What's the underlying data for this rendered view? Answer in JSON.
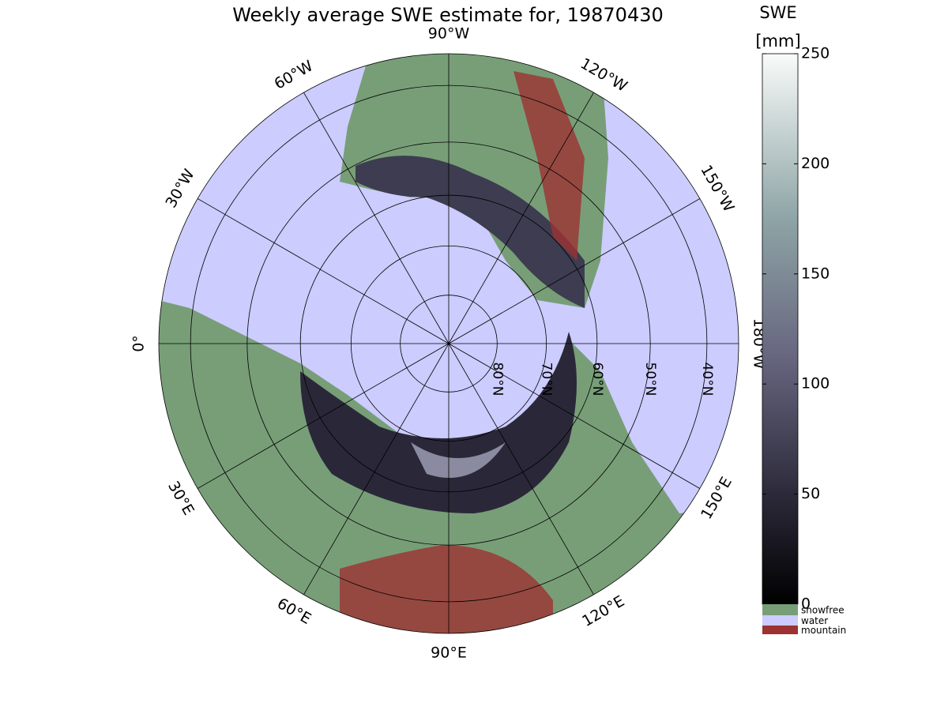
{
  "title": "Weekly average SWE estimate for, 19870430",
  "map": {
    "longitudes": [
      {
        "value": -90,
        "label": "90°W"
      },
      {
        "value": -120,
        "label": "120°W"
      },
      {
        "value": -150,
        "label": "150°W"
      },
      {
        "value": -180,
        "label": "180°W"
      },
      {
        "value": 150,
        "label": "150°E"
      },
      {
        "value": 120,
        "label": "120°E"
      },
      {
        "value": 90,
        "label": "90°E"
      },
      {
        "value": 60,
        "label": "60°E"
      },
      {
        "value": 30,
        "label": "30°E"
      },
      {
        "value": 0,
        "label": "0°"
      },
      {
        "value": -30,
        "label": "30°W"
      },
      {
        "value": -60,
        "label": "60°W"
      }
    ],
    "latitudes": [
      {
        "value": 80,
        "label": "80°N"
      },
      {
        "value": 70,
        "label": "70°N"
      },
      {
        "value": 60,
        "label": "60°N"
      },
      {
        "value": 50,
        "label": "50°N"
      },
      {
        "value": 40,
        "label": "40°N"
      }
    ]
  },
  "colorbar": {
    "title": "SWE",
    "unit": "[mm]",
    "lim": [
      0,
      250
    ],
    "ticks": [
      0,
      50,
      100,
      150,
      200,
      250
    ]
  },
  "legend": [
    {
      "name": "snowfree",
      "color": "#789e78"
    },
    {
      "name": "water",
      "color": "#ccccff"
    },
    {
      "name": "mountain",
      "color": "#9c3232"
    }
  ]
}
